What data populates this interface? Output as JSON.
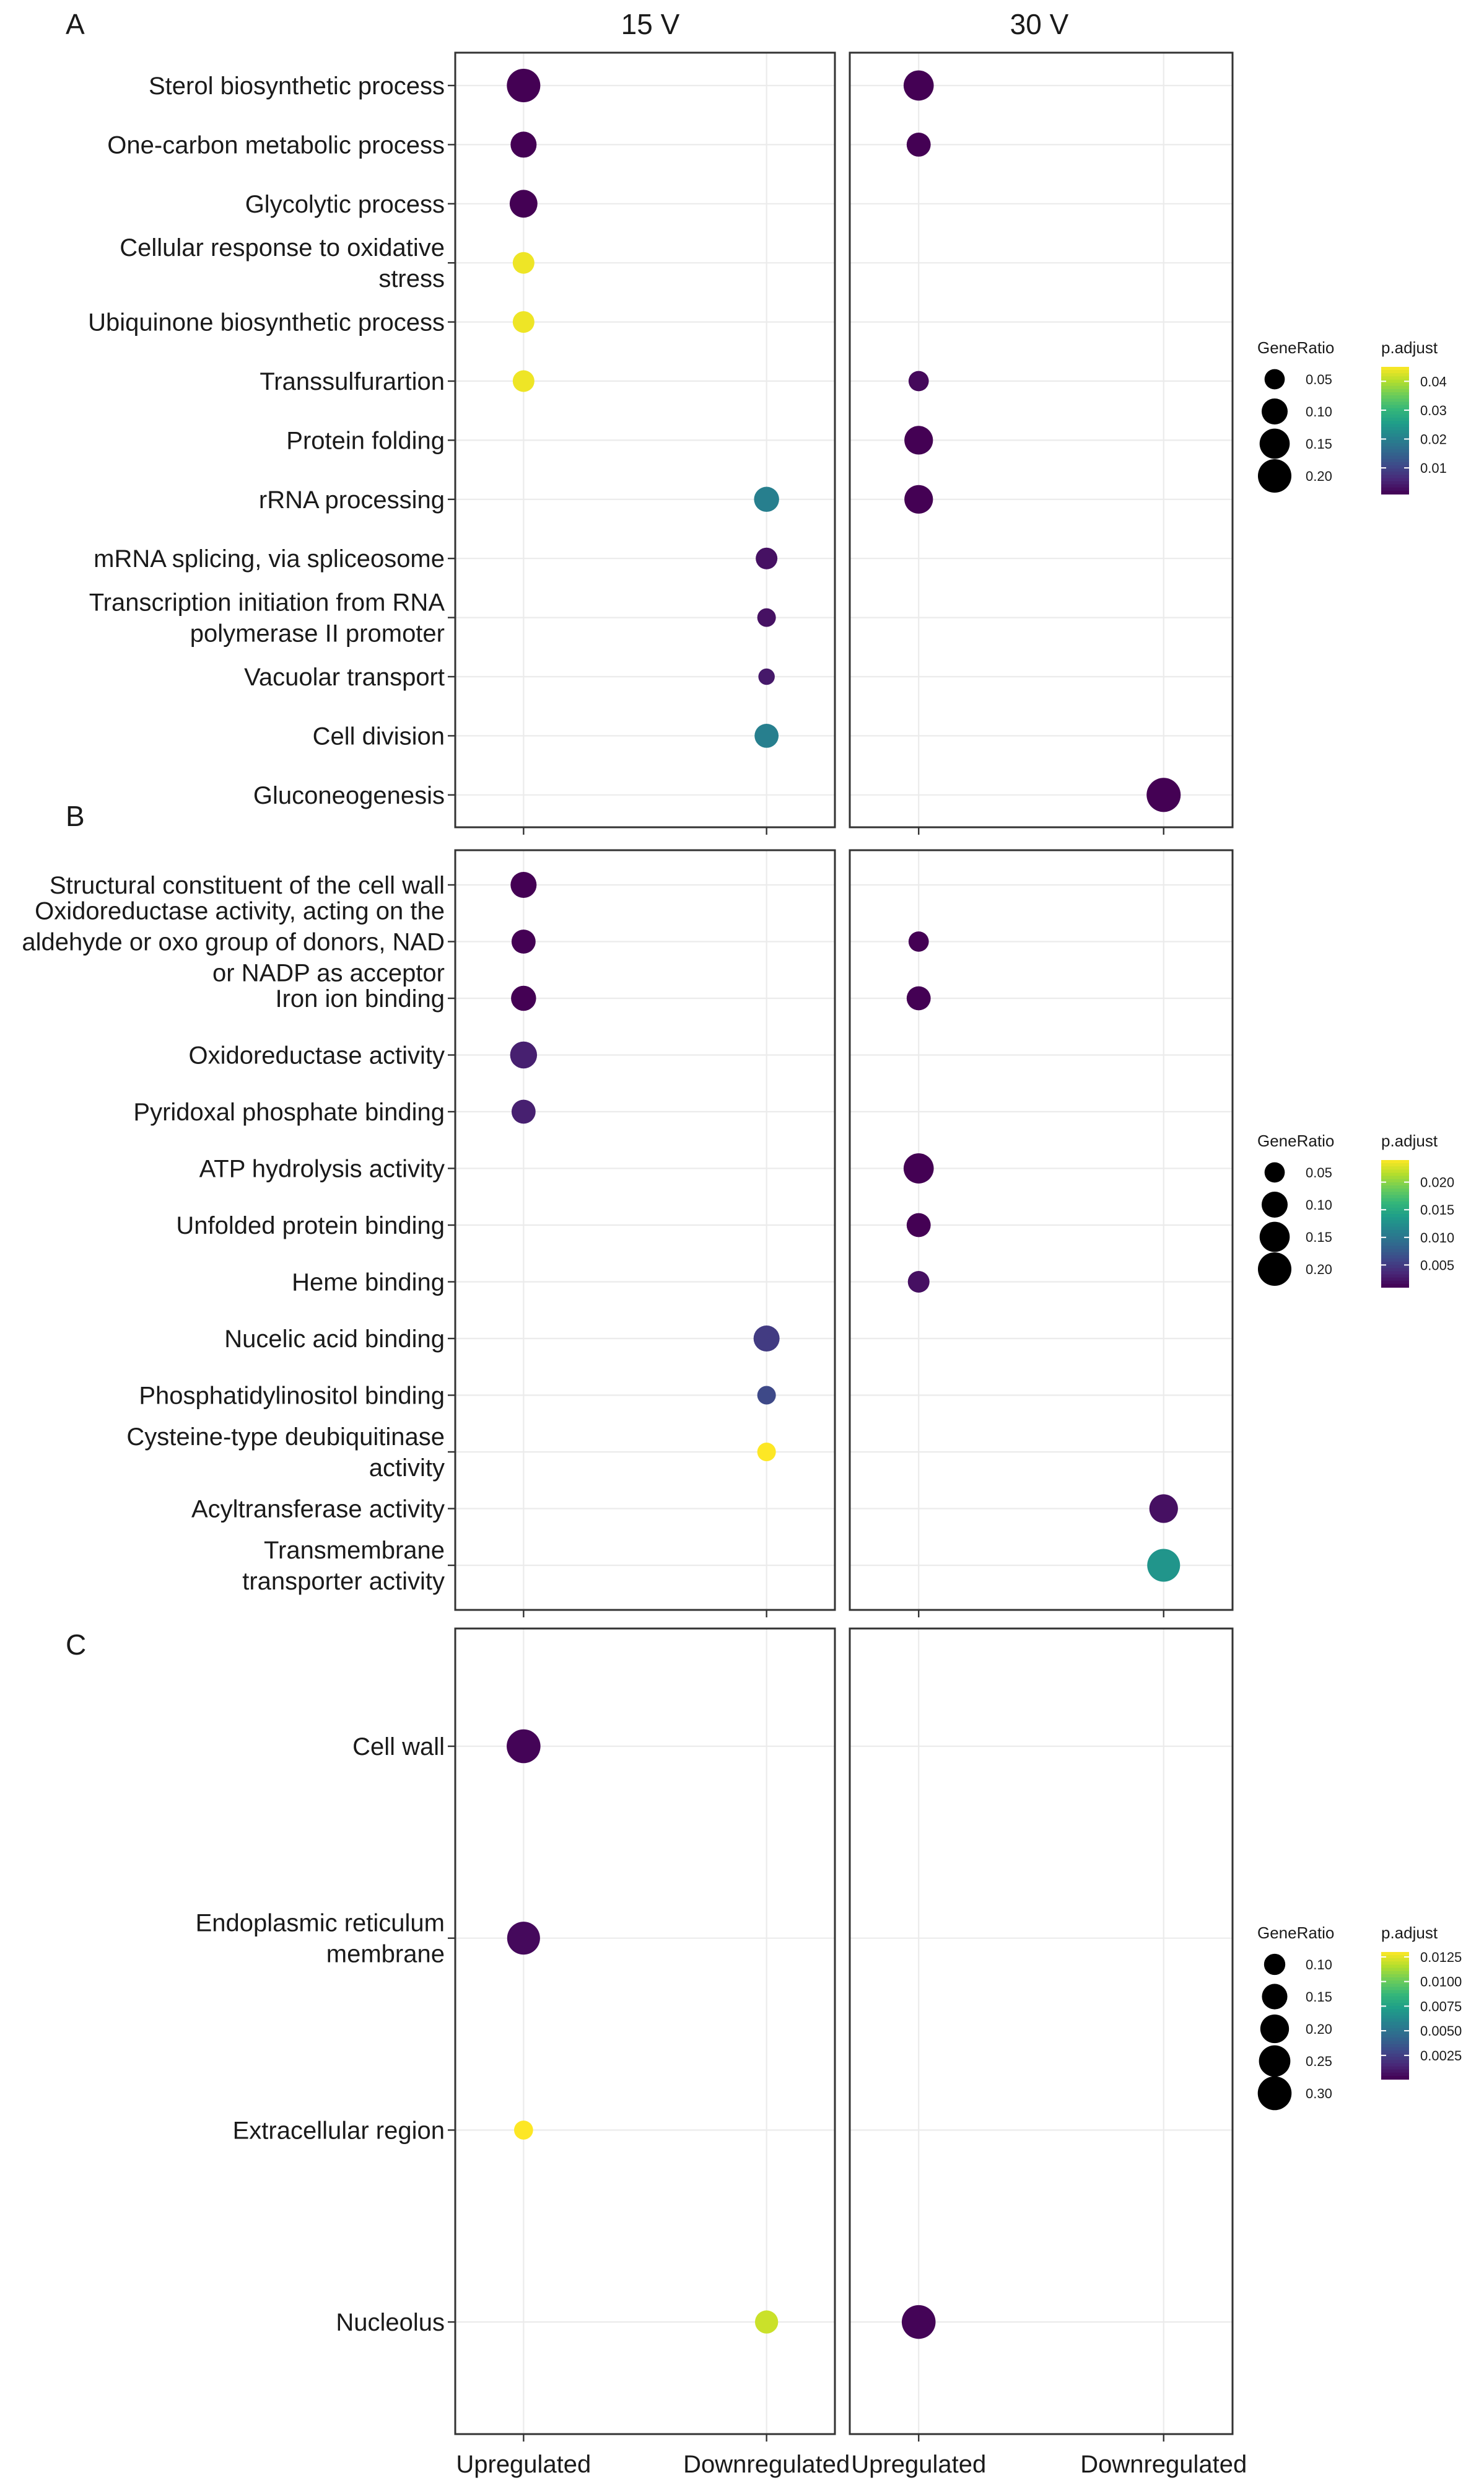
{
  "chart_data": {
    "type": "scatter",
    "facets": [
      "15 V",
      "30 V"
    ],
    "categories": [
      "Upregulated",
      "Downregulated"
    ],
    "panels": [
      {
        "label": "A",
        "terms": [
          "Sterol biosynthetic process",
          "One-carbon metabolic process",
          "Glycolytic process",
          "Cellular response to oxidative|stress",
          "Ubiquinone biosynthetic process",
          "Transsulfurartion",
          "Protein folding",
          "rRNA processing",
          "mRNA splicing, via spliceosome",
          "Transcription initiation from RNA|polymerase II promoter",
          "Vacuolar transport",
          "Cell division",
          "Gluconeogenesis"
        ],
        "points": [
          {
            "term": "Sterol biosynthetic process",
            "facet": "15 V",
            "category": "Upregulated",
            "gene_ratio": 0.2,
            "p_adjust": 0.001
          },
          {
            "term": "Sterol biosynthetic process",
            "facet": "30 V",
            "category": "Upregulated",
            "gene_ratio": 0.15,
            "p_adjust": 0.001
          },
          {
            "term": "One-carbon metabolic process",
            "facet": "15 V",
            "category": "Upregulated",
            "gene_ratio": 0.1,
            "p_adjust": 0.001
          },
          {
            "term": "One-carbon metabolic process",
            "facet": "30 V",
            "category": "Upregulated",
            "gene_ratio": 0.08,
            "p_adjust": 0.001
          },
          {
            "term": "Glycolytic process",
            "facet": "15 V",
            "category": "Upregulated",
            "gene_ratio": 0.12,
            "p_adjust": 0.001
          },
          {
            "term": "Cellular response to oxidative|stress",
            "facet": "15 V",
            "category": "Upregulated",
            "gene_ratio": 0.06,
            "p_adjust": 0.044
          },
          {
            "term": "Ubiquinone biosynthetic process",
            "facet": "15 V",
            "category": "Upregulated",
            "gene_ratio": 0.06,
            "p_adjust": 0.044
          },
          {
            "term": "Transsulfurartion",
            "facet": "15 V",
            "category": "Upregulated",
            "gene_ratio": 0.06,
            "p_adjust": 0.044
          },
          {
            "term": "Transsulfurartion",
            "facet": "30 V",
            "category": "Upregulated",
            "gene_ratio": 0.05,
            "p_adjust": 0.002
          },
          {
            "term": "Protein folding",
            "facet": "30 V",
            "category": "Upregulated",
            "gene_ratio": 0.13,
            "p_adjust": 0.001
          },
          {
            "term": "rRNA processing",
            "facet": "15 V",
            "category": "Downregulated",
            "gene_ratio": 0.09,
            "p_adjust": 0.02
          },
          {
            "term": "rRNA processing",
            "facet": "30 V",
            "category": "Upregulated",
            "gene_ratio": 0.13,
            "p_adjust": 0.001
          },
          {
            "term": "mRNA splicing, via spliceosome",
            "facet": "15 V",
            "category": "Downregulated",
            "gene_ratio": 0.06,
            "p_adjust": 0.003
          },
          {
            "term": "Transcription initiation from RNA|polymerase II promoter",
            "facet": "15 V",
            "category": "Downregulated",
            "gene_ratio": 0.04,
            "p_adjust": 0.003
          },
          {
            "term": "Vacuolar transport",
            "facet": "15 V",
            "category": "Downregulated",
            "gene_ratio": 0.03,
            "p_adjust": 0.004
          },
          {
            "term": "Cell division",
            "facet": "15 V",
            "category": "Downregulated",
            "gene_ratio": 0.08,
            "p_adjust": 0.02
          },
          {
            "term": "Gluconeogenesis",
            "facet": "30 V",
            "category": "Downregulated",
            "gene_ratio": 0.21,
            "p_adjust": 0.001
          }
        ],
        "legend": {
          "size_title": "GeneRatio",
          "color_title": "p.adjust",
          "size_breaks": [
            "0.05",
            "0.10",
            "0.15",
            "0.20"
          ],
          "size_values": [
            0.05,
            0.1,
            0.15,
            0.2
          ],
          "color_breaks": [
            "0.04",
            "0.03",
            "0.02",
            "0.01"
          ],
          "color_values": [
            0.04,
            0.03,
            0.02,
            0.01
          ],
          "color_range": [
            0.001,
            0.045
          ],
          "size_range": [
            0.02,
            0.22
          ]
        }
      },
      {
        "label": "B",
        "terms": [
          "Structural constituent of the cell wall",
          "Oxidoreductase activity, acting on the|aldehyde or oxo group of donors, NAD|or NADP as acceptor",
          "Iron ion binding",
          "Oxidoreductase activity",
          "Pyridoxal phosphate binding",
          "ATP hydrolysis activity",
          "Unfolded protein binding",
          "Heme binding",
          "Nucelic acid binding",
          "Phosphatidylinositol binding",
          "Cysteine-type deubiquitinase|activity",
          "Acyltransferase activity",
          "Transmembrane|transporter activity"
        ],
        "points": [
          {
            "term": "Structural constituent of the cell wall",
            "facet": "15 V",
            "category": "Upregulated",
            "gene_ratio": 0.1,
            "p_adjust": 0.001
          },
          {
            "term": "Oxidoreductase activity, acting on the|aldehyde or oxo group of donors, NAD|or NADP as acceptor",
            "facet": "15 V",
            "category": "Upregulated",
            "gene_ratio": 0.08,
            "p_adjust": 0.001
          },
          {
            "term": "Oxidoreductase activity, acting on the|aldehyde or oxo group of donors, NAD|or NADP as acceptor",
            "facet": "30 V",
            "category": "Upregulated",
            "gene_ratio": 0.05,
            "p_adjust": 0.001
          },
          {
            "term": "Iron ion binding",
            "facet": "15 V",
            "category": "Upregulated",
            "gene_ratio": 0.09,
            "p_adjust": 0.001
          },
          {
            "term": "Iron ion binding",
            "facet": "30 V",
            "category": "Upregulated",
            "gene_ratio": 0.08,
            "p_adjust": 0.001
          },
          {
            "term": "Oxidoreductase activity",
            "facet": "15 V",
            "category": "Upregulated",
            "gene_ratio": 0.11,
            "p_adjust": 0.003
          },
          {
            "term": "Pyridoxal phosphate binding",
            "facet": "15 V",
            "category": "Upregulated",
            "gene_ratio": 0.08,
            "p_adjust": 0.003
          },
          {
            "term": "ATP hydrolysis activity",
            "facet": "30 V",
            "category": "Upregulated",
            "gene_ratio": 0.15,
            "p_adjust": 0.001
          },
          {
            "term": "Unfolded protein binding",
            "facet": "30 V",
            "category": "Upregulated",
            "gene_ratio": 0.08,
            "p_adjust": 0.001
          },
          {
            "term": "Heme binding",
            "facet": "30 V",
            "category": "Upregulated",
            "gene_ratio": 0.06,
            "p_adjust": 0.002
          },
          {
            "term": "Nucelic acid binding",
            "facet": "15 V",
            "category": "Downregulated",
            "gene_ratio": 0.1,
            "p_adjust": 0.005
          },
          {
            "term": "Phosphatidylinositol binding",
            "facet": "15 V",
            "category": "Downregulated",
            "gene_ratio": 0.04,
            "p_adjust": 0.006
          },
          {
            "term": "Cysteine-type deubiquitinase|activity",
            "facet": "15 V",
            "category": "Downregulated",
            "gene_ratio": 0.04,
            "p_adjust": 0.024
          },
          {
            "term": "Acyltransferase activity",
            "facet": "30 V",
            "category": "Downregulated",
            "gene_ratio": 0.13,
            "p_adjust": 0.002
          },
          {
            "term": "Transmembrane|transporter activity",
            "facet": "30 V",
            "category": "Downregulated",
            "gene_ratio": 0.19,
            "p_adjust": 0.013
          }
        ],
        "legend": {
          "size_title": "GeneRatio",
          "color_title": "p.adjust",
          "size_breaks": [
            "0.05",
            "0.10",
            "0.15",
            "0.20"
          ],
          "size_values": [
            0.05,
            0.1,
            0.15,
            0.2
          ],
          "color_breaks": [
            "0.020",
            "0.015",
            "0.010",
            "0.005"
          ],
          "color_values": [
            0.02,
            0.015,
            0.01,
            0.005
          ],
          "color_range": [
            0.001,
            0.024
          ],
          "size_range": [
            0.02,
            0.22
          ]
        }
      },
      {
        "label": "C",
        "terms": [
          "Cell wall",
          "Endoplasmic reticulum|membrane",
          "Extracellular region",
          "Nucleolus"
        ],
        "points": [
          {
            "term": "Cell wall",
            "facet": "15 V",
            "category": "Upregulated",
            "gene_ratio": 0.3,
            "p_adjust": 0.0002
          },
          {
            "term": "Endoplasmic reticulum|membrane",
            "facet": "15 V",
            "category": "Upregulated",
            "gene_ratio": 0.28,
            "p_adjust": 0.0004
          },
          {
            "term": "Extracellular region",
            "facet": "15 V",
            "category": "Upregulated",
            "gene_ratio": 0.08,
            "p_adjust": 0.013
          },
          {
            "term": "Nucleolus",
            "facet": "15 V",
            "category": "Downregulated",
            "gene_ratio": 0.12,
            "p_adjust": 0.012
          },
          {
            "term": "Nucleolus",
            "facet": "30 V",
            "category": "Upregulated",
            "gene_ratio": 0.3,
            "p_adjust": 0.0002
          }
        ],
        "legend": {
          "size_title": "GeneRatio",
          "color_title": "p.adjust",
          "size_breaks": [
            "0.10",
            "0.15",
            "0.20",
            "0.25",
            "0.30"
          ],
          "size_values": [
            0.1,
            0.15,
            0.2,
            0.25,
            0.3
          ],
          "color_breaks": [
            "0.0125",
            "0.0100",
            "0.0075",
            "0.0050",
            "0.0025"
          ],
          "color_values": [
            0.0125,
            0.01,
            0.0075,
            0.005,
            0.0025
          ],
          "color_range": [
            0.0001,
            0.013
          ],
          "size_range": [
            0.05,
            0.32
          ]
        }
      }
    ]
  }
}
